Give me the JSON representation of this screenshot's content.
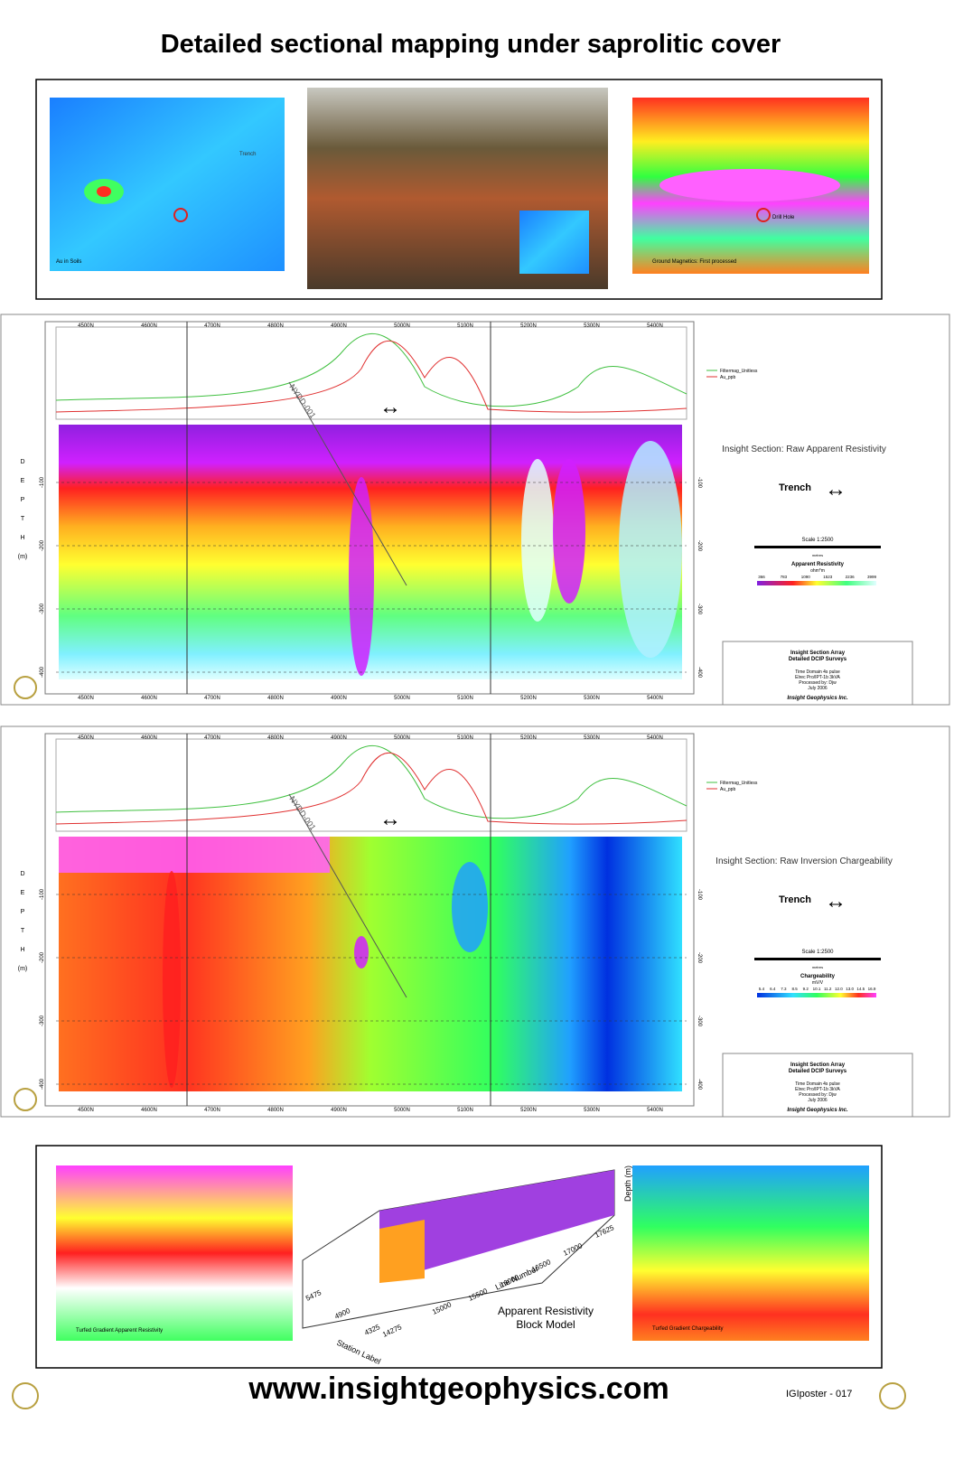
{
  "header": {
    "title": "Detailed sectional mapping under saprolitic cover"
  },
  "top_panel": {
    "captions": [
      "Au in Soils",
      "Ground Magnetics: First processed"
    ],
    "map_labels": [
      "Trench",
      "Drill Hole"
    ]
  },
  "sections": [
    {
      "title": "Insight Section: Raw Apparent Resistivity",
      "trench": "Trench",
      "scale": "Scale 1:2500",
      "scale_unit": "metres",
      "legend_title": "Apparent Resistivity",
      "legend_unit": "ohm*m",
      "legend_values": [
        "366",
        "783",
        "1090",
        "1523",
        "2236",
        "3999"
      ],
      "stations": [
        "4500N",
        "4600N",
        "4700N",
        "4800N",
        "4900N",
        "5000N",
        "5100N",
        "5200N",
        "5300N",
        "5400N"
      ],
      "depths": [
        -100,
        -200,
        -300,
        -400
      ],
      "depth_word": [
        "D",
        "E",
        "P",
        "T",
        "H",
        "(m)"
      ],
      "hole_label": "NYDD-001",
      "profile_legend": [
        "Filtermag_Unitless",
        "Au_ppb"
      ],
      "block": [
        "Insight Section Array",
        "Detailed DCIP Surveys",
        "Time Domain 4s pulse",
        "Elrec Pro/IPT-1b 3kVA",
        "Processed by: Djw",
        "July 2006",
        "Insight Geophysics Inc."
      ]
    },
    {
      "title": "Insight Section: Raw Inversion Chargeability",
      "trench": "Trench",
      "scale": "Scale 1:2500",
      "scale_unit": "metres",
      "legend_title": "Chargeability",
      "legend_unit": "mV/V",
      "legend_values": [
        "5.4",
        "6.4",
        "7.3",
        "8.5",
        "9.2",
        "10.1",
        "11.2",
        "12.0",
        "13.0",
        "14.5",
        "16.9"
      ],
      "stations": [
        "4500N",
        "4600N",
        "4700N",
        "4800N",
        "4900N",
        "5000N",
        "5100N",
        "5200N",
        "5300N",
        "5400N"
      ],
      "depths": [
        -100,
        -200,
        -300,
        -400
      ],
      "depth_word": [
        "D",
        "E",
        "P",
        "T",
        "H",
        "(m)"
      ],
      "hole_label": "NYDD-001",
      "profile_legend": [
        "Filtermag_Unitless",
        "Au_ppb"
      ],
      "block": [
        "Insight Section Array",
        "Detailed DCIP Surveys",
        "Time Domain 4s pulse",
        "Elrec Pro/IPT-1b 3kVA",
        "Processed by: Djw",
        "July 2006",
        "Insight Geophysics Inc."
      ]
    }
  ],
  "bottom_panel": {
    "captions": [
      "Turfed Gradient Apparent Resistivity",
      "Turfed Gradient Chargeability"
    ],
    "model_caption": [
      "Apparent Resistivity",
      "Block Model"
    ],
    "model_axes": [
      "Station Label",
      "Line Number",
      "Depth (m)"
    ],
    "model_ticks": [
      "5475",
      "4900",
      "4325",
      "14275",
      "15000",
      "15500",
      "16000",
      "16500",
      "17000",
      "17625"
    ]
  },
  "footer": {
    "url": "www.insightgeophysics.com",
    "code": "IGIposter - 017"
  }
}
